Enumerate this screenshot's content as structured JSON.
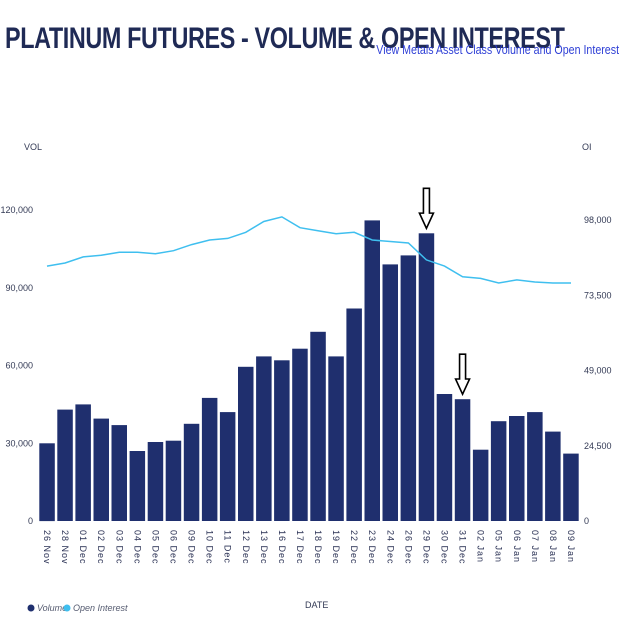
{
  "header": {
    "title": "PLATINUM FUTURES - VOLUME & OPEN INTEREST",
    "link_text": "View Metals Asset Class Volume and Open Interest"
  },
  "colors": {
    "bar": "#1f2f6e",
    "line": "#3fbfef",
    "title": "#1f2a55",
    "link": "#2e3fd6"
  },
  "chart_data": {
    "type": "bar",
    "xlabel": "DATE",
    "ylabel_left": "VOL",
    "ylabel_right": "OI",
    "categories": [
      "26 Nov",
      "28 Nov",
      "01 Dec",
      "02 Dec",
      "03 Dec",
      "04 Dec",
      "05 Dec",
      "06 Dec",
      "09 Dec",
      "10 Dec",
      "11 Dec",
      "12 Dec",
      "13 Dec",
      "16 Dec",
      "17 Dec",
      "18 Dec",
      "19 Dec",
      "22 Dec",
      "23 Dec",
      "24 Dec",
      "26 Dec",
      "29 Dec",
      "30 Dec",
      "31 Dec",
      "02 Jan",
      "05 Jan",
      "06 Jan",
      "07 Jan",
      "08 Jan",
      "09 Jan"
    ],
    "series": [
      {
        "name": "Volume",
        "axis": "left",
        "type": "bar",
        "values": [
          30000,
          43000,
          45000,
          39500,
          37000,
          27000,
          30500,
          31000,
          37500,
          47500,
          42000,
          59500,
          63500,
          62000,
          66500,
          73000,
          63500,
          82000,
          116000,
          99000,
          102500,
          111000,
          49000,
          47000,
          27500,
          38500,
          40500,
          42000,
          34500,
          26000
        ]
      },
      {
        "name": "Open Interest",
        "axis": "right",
        "type": "line",
        "values": [
          83000,
          84000,
          86000,
          86500,
          87500,
          87500,
          87000,
          88000,
          90000,
          91500,
          92000,
          94000,
          97500,
          99000,
          95500,
          94500,
          93500,
          94000,
          91500,
          91000,
          90500,
          85000,
          83000,
          79500,
          79000,
          77500,
          78500,
          77800,
          77500,
          77500
        ]
      }
    ],
    "ylim_left": [
      0,
      120000
    ],
    "yticks_left": [
      0,
      30000,
      60000,
      90000,
      120000
    ],
    "ytick_labels_left": [
      "0",
      "30,000",
      "60,000",
      "90,000",
      "120,000"
    ],
    "ylim_right": [
      0,
      98000
    ],
    "yticks_right": [
      0,
      24500,
      49000,
      73500,
      98000
    ],
    "ytick_labels_right": [
      "0",
      "24,500",
      "49,000",
      "73,500",
      "98,000"
    ],
    "annotations": [
      {
        "type": "arrow-down",
        "category": "29 Dec"
      },
      {
        "type": "arrow-down",
        "category": "31 Dec"
      }
    ],
    "legend": [
      "Volume",
      "Open Interest"
    ],
    "legend_position": "bottom-left"
  }
}
